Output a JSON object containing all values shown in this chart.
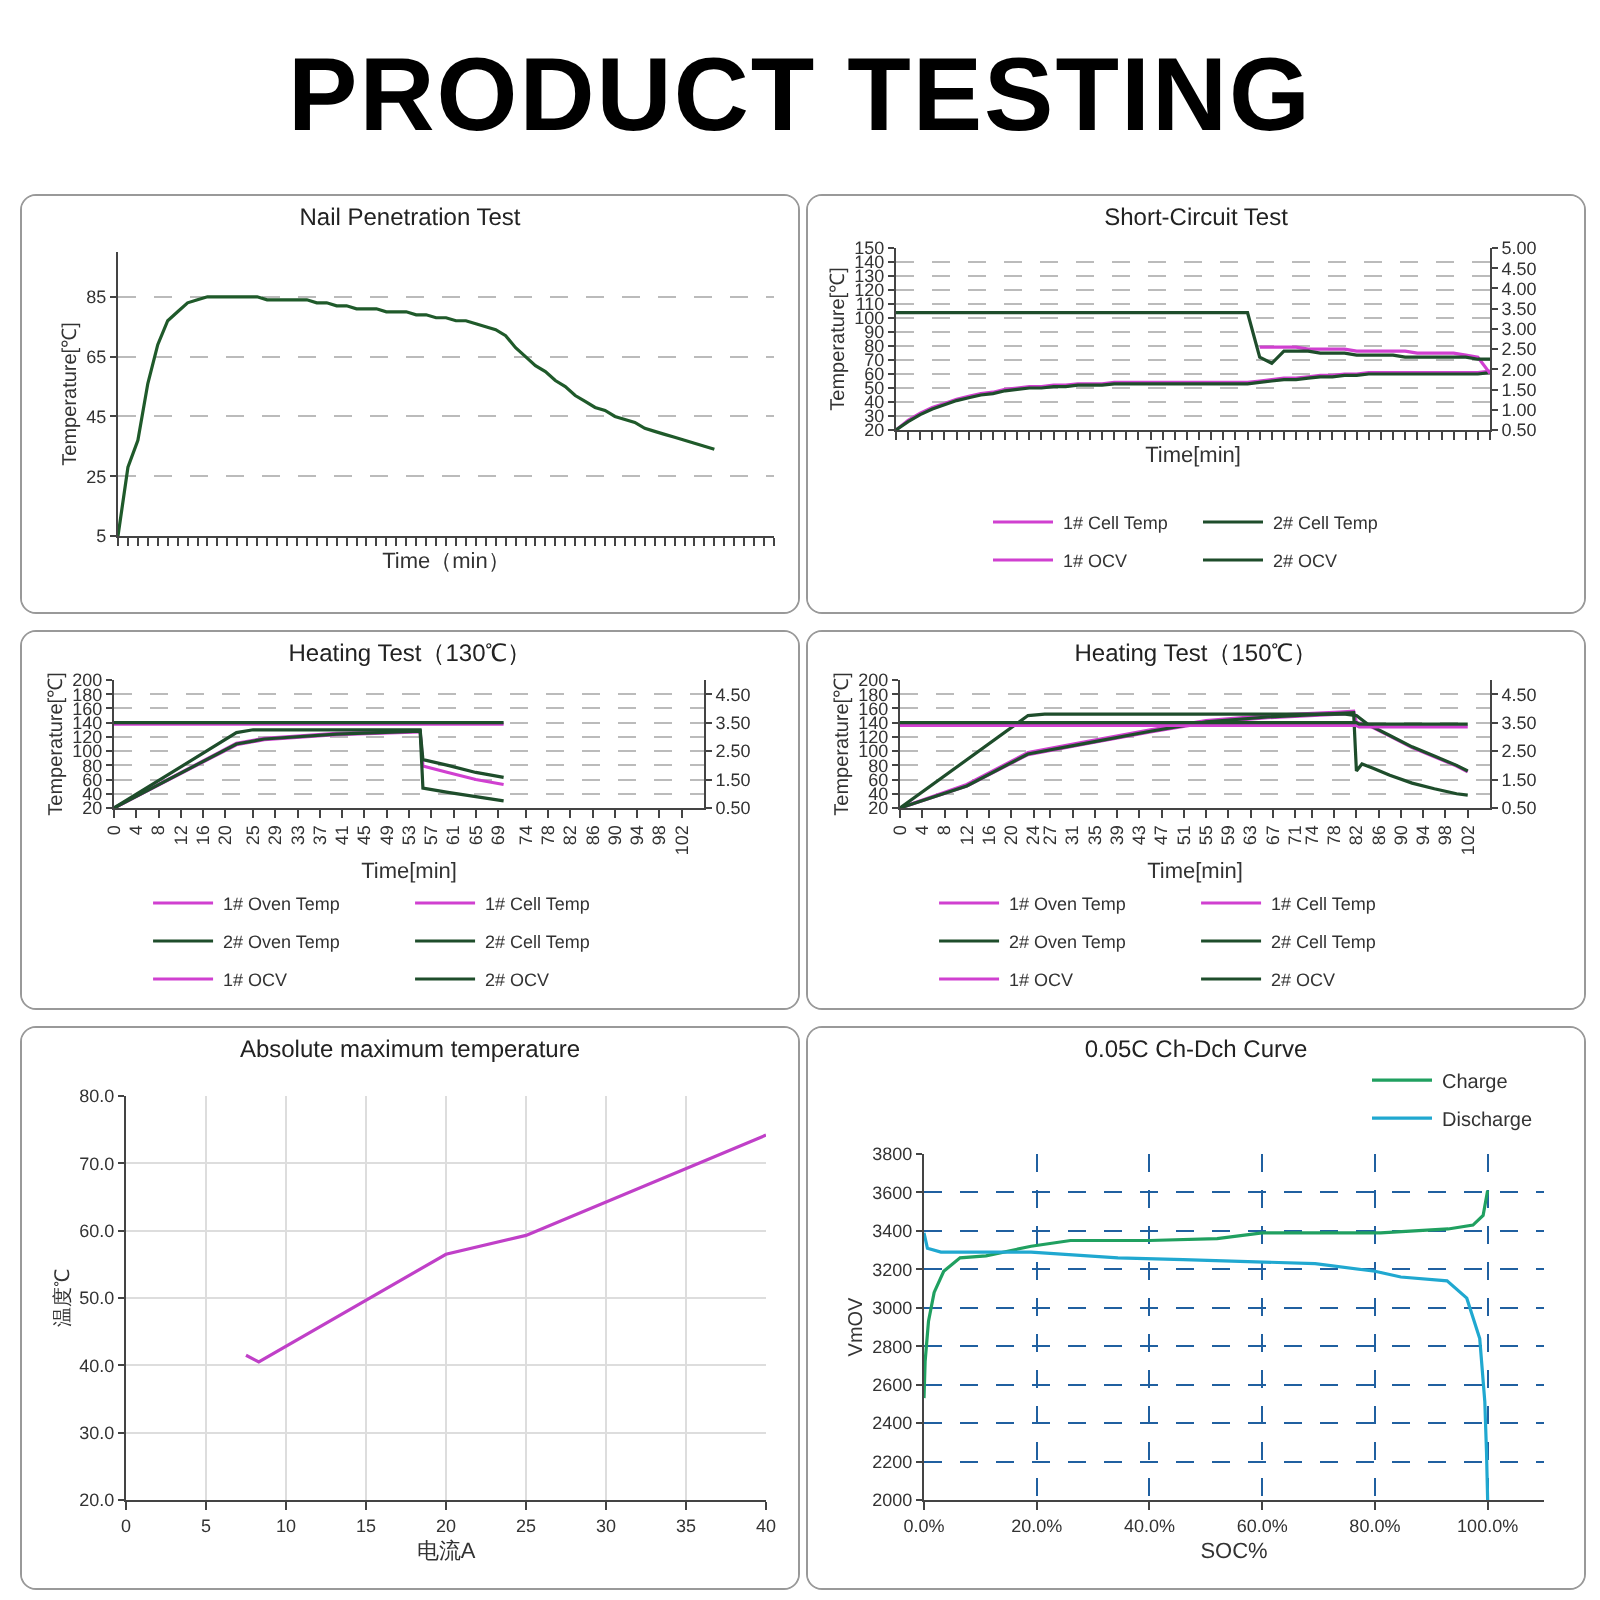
{
  "chart_data": [
    {
      "type": "other",
      "title": "PRODUCT TESTING"
    },
    {
      "type": "line",
      "title": "Nail Penetration Test",
      "xlabel": "Time（min）",
      "ylabel": "Temperature[℃]",
      "categories": [
        null,
        null,
        null,
        null,
        null,
        null,
        null,
        null,
        null,
        null,
        null,
        null,
        null,
        null,
        null,
        null,
        null,
        null,
        null,
        null,
        null,
        null,
        null,
        null,
        null,
        null,
        null,
        null,
        null,
        null,
        null,
        null,
        null,
        null,
        null,
        null,
        null,
        null,
        null,
        null,
        null,
        null,
        null,
        null,
        null,
        null,
        null,
        null,
        null,
        null,
        null,
        null,
        null,
        null,
        null,
        null,
        null,
        null,
        null,
        null,
        null,
        null,
        null,
        null,
        null,
        null,
        null
      ],
      "ylim": [
        5,
        100
      ],
      "yticks": [
        5,
        25,
        45,
        65,
        85
      ],
      "grid": "y",
      "tick_labels": "y",
      "line_style": "solid",
      "series": [
        {
          "color": "#1f5a2a",
          "values": [
            5,
            28,
            37,
            56,
            69,
            77,
            80,
            83,
            84,
            85,
            85,
            85,
            85,
            85,
            85,
            84,
            84,
            84,
            84,
            84,
            83,
            83,
            82,
            82,
            81,
            81,
            81,
            80,
            80,
            80,
            79,
            79,
            78,
            78,
            77,
            77,
            76,
            75,
            74,
            72,
            68,
            65,
            62,
            60,
            57,
            55,
            52,
            50,
            48,
            47,
            45,
            44,
            43,
            41,
            40,
            39,
            38,
            37,
            36,
            35,
            34,
            null,
            null,
            null,
            null,
            null,
            null
          ]
        }
      ]
    },
    {
      "type": "line",
      "title": "Short-Circuit Test",
      "xlabel": "Time[min]",
      "ylabel": "Temperature[℃]",
      "categories": [
        null,
        null,
        null,
        null,
        null,
        null,
        null,
        null,
        null,
        null,
        null,
        null,
        null,
        null,
        null,
        null,
        null,
        null,
        null,
        null,
        null,
        null,
        null,
        null,
        null,
        null,
        null,
        null,
        null,
        null,
        null,
        null,
        null,
        null,
        null,
        null,
        null,
        null,
        null,
        null,
        null,
        null,
        null,
        null,
        null,
        null,
        null,
        null,
        null,
        null
      ],
      "ylim": [
        20,
        150
      ],
      "yticks": [
        20,
        30,
        40,
        50,
        60,
        70,
        80,
        90,
        100,
        110,
        120,
        130,
        140,
        150
      ],
      "y2lim": [
        0.5,
        5
      ],
      "y2ticks": [
        {
          "value": 0.5,
          "label": "0.50"
        },
        {
          "value": 1,
          "label": "1.00"
        },
        {
          "value": 1.5,
          "label": "1.50"
        },
        {
          "value": 2,
          "label": "2.00"
        },
        {
          "value": 2.5,
          "label": "2.50"
        },
        {
          "value": 3,
          "label": "3.00"
        },
        {
          "value": 3.5,
          "label": "3.50"
        },
        {
          "value": 4,
          "label": "4.00"
        },
        {
          "value": 4.5,
          "label": "4.50"
        },
        {
          "value": 5,
          "label": "5.00"
        }
      ],
      "grid": "y",
      "tick_labels": "y",
      "legend": "bottom",
      "line_style": "solid",
      "series": [
        {
          "name": "1# Cell Temp",
          "color": "#d040d0",
          "values": [
            20,
            27,
            32,
            36,
            39,
            42,
            44,
            46,
            47,
            49,
            50,
            51,
            51,
            52,
            52,
            53,
            53,
            53,
            54,
            54,
            54,
            54,
            54,
            54,
            54,
            54,
            54,
            54,
            54,
            54,
            55,
            56,
            57,
            57,
            58,
            59,
            59,
            60,
            60,
            61,
            61,
            61,
            61,
            61,
            61,
            61,
            61,
            61,
            61,
            62
          ]
        },
        {
          "name": "2# Cell Temp",
          "color": "#1e4d2b",
          "values": [
            20,
            26,
            31,
            35,
            38,
            41,
            43,
            45,
            46,
            48,
            49,
            50,
            50,
            51,
            51,
            52,
            52,
            52,
            53,
            53,
            53,
            53,
            53,
            53,
            53,
            53,
            53,
            53,
            53,
            53,
            54,
            55,
            56,
            56,
            57,
            58,
            58,
            59,
            59,
            60,
            60,
            60,
            60,
            60,
            60,
            60,
            60,
            60,
            60,
            61
          ]
        },
        {
          "name": "1# OCV",
          "color": "#d040d0",
          "axis": "y2",
          "values": [
            null,
            null,
            null,
            null,
            null,
            null,
            null,
            null,
            null,
            null,
            null,
            null,
            null,
            null,
            null,
            null,
            null,
            null,
            null,
            null,
            null,
            null,
            null,
            null,
            null,
            null,
            null,
            null,
            null,
            null,
            2.55,
            2.55,
            2.55,
            2.55,
            2.5,
            2.5,
            2.5,
            2.5,
            2.45,
            2.45,
            2.45,
            2.45,
            2.45,
            2.4,
            2.4,
            2.4,
            2.4,
            2.35,
            2.3,
            1.9
          ]
        },
        {
          "name": "2# OCV",
          "color": "#1e4d2b",
          "axis": "y2",
          "values": [
            3.4,
            3.4,
            3.4,
            3.4,
            3.4,
            3.4,
            3.4,
            3.4,
            3.4,
            3.4,
            3.4,
            3.4,
            3.4,
            3.4,
            3.4,
            3.4,
            3.4,
            3.4,
            3.4,
            3.4,
            3.4,
            3.4,
            3.4,
            3.4,
            3.4,
            3.4,
            3.4,
            3.4,
            3.4,
            3.4,
            2.3,
            2.15,
            2.45,
            2.45,
            2.45,
            2.4,
            2.4,
            2.4,
            2.35,
            2.35,
            2.35,
            2.35,
            2.3,
            2.3,
            2.3,
            2.3,
            2.3,
            2.3,
            2.25,
            2.25
          ]
        }
      ]
    },
    {
      "type": "line",
      "title": "Heating Test（130℃）",
      "xlabel": "Time[min]",
      "ylabel": "Temperature[℃]",
      "xlim": [
        0,
        106
      ],
      "xticks": [
        0,
        4,
        8,
        12,
        16,
        20,
        25,
        29,
        33,
        37,
        41,
        45,
        49,
        53,
        57,
        61,
        65,
        69,
        74,
        78,
        82,
        86,
        90,
        94,
        98,
        102
      ],
      "ylim": [
        20,
        200
      ],
      "yticks": [
        20,
        40,
        60,
        80,
        100,
        120,
        140,
        160,
        180,
        200
      ],
      "y2lim": [
        0.5,
        5
      ],
      "y2ticks": [
        {
          "value": 0.5,
          "label": "0.50"
        },
        {
          "value": 1.5,
          "label": "1.50"
        },
        {
          "value": 2.5,
          "label": "2.50"
        },
        {
          "value": 3.5,
          "label": "3.50"
        },
        {
          "value": 4.5,
          "label": "4.50"
        }
      ],
      "grid": "y",
      "legend": "bottom",
      "line_style": "solid",
      "series": [
        {
          "name": "1# Oven Temp",
          "color": "#d040d0",
          "x": [
            0,
            22,
            27,
            40,
            55,
            55.5,
            60,
            65,
            70
          ],
          "values": [
            20,
            111,
            118,
            125,
            128,
            79,
            70,
            60,
            53
          ]
        },
        {
          "name": "1# Cell Temp",
          "color": "#d040d0",
          "x": [
            0,
            22,
            27,
            40,
            55
          ],
          "values": [
            20,
            109,
            116,
            123,
            127
          ]
        },
        {
          "name": "2# Oven Temp",
          "color": "#1e4d2b",
          "x": [
            0,
            22,
            25,
            55,
            55.5,
            60,
            65,
            70
          ],
          "values": [
            20,
            126,
            130,
            130,
            88,
            80,
            70,
            63
          ]
        },
        {
          "name": "2# Cell Temp",
          "color": "#1e4d2b",
          "x": [
            0,
            22,
            27,
            40,
            55,
            55.5,
            60,
            65,
            70
          ],
          "values": [
            20,
            110,
            117,
            124,
            128,
            48,
            42,
            36,
            30
          ]
        },
        {
          "name": "1# OCV",
          "color": "#d040d0",
          "axis": "y2",
          "x": [
            0,
            70
          ],
          "values": [
            3.45,
            3.45
          ]
        },
        {
          "name": "2# OCV",
          "color": "#1e4d2b",
          "axis": "y2",
          "x": [
            0,
            70
          ],
          "values": [
            3.5,
            3.5
          ]
        }
      ]
    },
    {
      "type": "line",
      "title": "Heating Test（150℃）",
      "xlabel": "Time[min]",
      "ylabel": "Temperature[℃]",
      "xlim": [
        0,
        106
      ],
      "xticks": [
        0,
        4,
        8,
        12,
        16,
        20,
        24,
        27,
        31,
        35,
        39,
        43,
        47,
        51,
        55,
        59,
        63,
        67,
        71,
        74,
        78,
        82,
        86,
        90,
        94,
        98,
        102
      ],
      "ylim": [
        20,
        200
      ],
      "yticks": [
        20,
        40,
        60,
        80,
        100,
        120,
        140,
        160,
        180,
        200
      ],
      "y2lim": [
        0.5,
        5
      ],
      "y2ticks": [
        {
          "value": 0.5,
          "label": "0.50"
        },
        {
          "value": 1.5,
          "label": "1.50"
        },
        {
          "value": 2.5,
          "label": "2.50"
        },
        {
          "value": 3.5,
          "label": "3.50"
        },
        {
          "value": 4.5,
          "label": "4.50"
        }
      ],
      "grid": "y",
      "legend": "bottom",
      "line_style": "solid",
      "series": [
        {
          "name": "1# Oven Temp",
          "color": "#d040d0",
          "x": [
            0,
            12,
            23,
            34,
            45,
            55,
            66,
            79,
            81.5,
            82,
            84,
            88,
            92,
            96,
            100,
            102
          ],
          "values": [
            20,
            53,
            98,
            114,
            130,
            143,
            150,
            155,
            156,
            140,
            137,
            121,
            105,
            92,
            79,
            71
          ]
        },
        {
          "name": "1# Cell Temp",
          "color": "#d040d0",
          "x": [
            0,
            12,
            23,
            34,
            45,
            55,
            66,
            79,
            81.5
          ],
          "values": [
            20,
            51,
            95,
            111,
            127,
            140,
            147,
            152,
            153
          ]
        },
        {
          "name": "2# Oven Temp",
          "color": "#1e4d2b",
          "x": [
            0,
            23,
            26,
            80,
            82,
            84,
            88,
            92,
            96,
            100,
            102
          ],
          "values": [
            20,
            150,
            152,
            152,
            150,
            138,
            122,
            106,
            93,
            80,
            72
          ]
        },
        {
          "name": "2# Cell Temp",
          "color": "#1e4d2b",
          "x": [
            0,
            12,
            23,
            34,
            45,
            55,
            66,
            79,
            81.5,
            82,
            83,
            85,
            88,
            92,
            96,
            100,
            102
          ],
          "values": [
            20,
            51,
            96,
            112,
            128,
            141,
            148,
            153,
            154,
            72,
            82,
            76,
            66,
            55,
            47,
            40,
            38
          ]
        },
        {
          "name": "1# OCV",
          "color": "#d040d0",
          "axis": "y2",
          "x": [
            0,
            82,
            82.5,
            102
          ],
          "values": [
            3.4,
            3.4,
            3.35,
            3.35
          ]
        },
        {
          "name": "2# OCV",
          "color": "#1e4d2b",
          "axis": "y2",
          "x": [
            0,
            82,
            82.5,
            102
          ],
          "values": [
            3.5,
            3.5,
            3.45,
            3.45
          ]
        }
      ]
    },
    {
      "type": "line",
      "title": "Absolute maximum temperature",
      "xlabel": "电流A",
      "ylabel": "温度℃",
      "xlim": [
        0,
        40
      ],
      "xticks": [
        0,
        5,
        10,
        15,
        20,
        25,
        30,
        35,
        40
      ],
      "ylim": [
        20,
        80
      ],
      "yticks": [
        {
          "value": 20,
          "label": "20.0"
        },
        {
          "value": 30,
          "label": "30.0"
        },
        {
          "value": 40,
          "label": "40.0"
        },
        {
          "value": 50,
          "label": "50.0"
        },
        {
          "value": 60,
          "label": "60.0"
        },
        {
          "value": 70,
          "label": "70.0"
        },
        {
          "value": 80,
          "label": "80.0"
        }
      ],
      "grid": true,
      "line_style": "solid",
      "series": [
        {
          "color": "#c040c8",
          "x": [
            7.5,
            8.3,
            20,
            25,
            40
          ],
          "values": [
            41.5,
            40.5,
            56.5,
            59.3,
            74.2
          ]
        }
      ]
    },
    {
      "type": "line",
      "title": "0.05C Ch-Dch Curve",
      "xlabel": "SOC%",
      "ylabel": "VmOV",
      "xlim": [
        0,
        110
      ],
      "xticks": [
        {
          "value": 0,
          "label": "0.0%"
        },
        {
          "value": 20,
          "label": "20.0%"
        },
        {
          "value": 40,
          "label": "40.0%"
        },
        {
          "value": 60,
          "label": "60.0%"
        },
        {
          "value": 80,
          "label": "80.0%"
        },
        {
          "value": 100,
          "label": "100.0%"
        }
      ],
      "ylim": [
        2000,
        3800
      ],
      "yticks": [
        2000,
        2200,
        2400,
        2600,
        2800,
        3000,
        3200,
        3400,
        3600,
        3800
      ],
      "grid": true,
      "legend": "top right",
      "line_style": "solid",
      "series": [
        {
          "name": "Charge",
          "color": "#20a060",
          "x": [
            0,
            0.2,
            0.8,
            1.8,
            3.5,
            6.4,
            11,
            19,
            26,
            40,
            52,
            60,
            81,
            93,
            97.4,
            99.2,
            100
          ],
          "values": [
            2530,
            2720,
            2930,
            3080,
            3190,
            3260,
            3270,
            3320,
            3350,
            3350,
            3360,
            3390,
            3390,
            3410,
            3430,
            3480,
            3610
          ]
        },
        {
          "name": "Discharge",
          "color": "#20a8d0",
          "x": [
            0,
            0.6,
            3,
            19,
            34.4,
            46,
            69.4,
            80,
            84.6,
            92.8,
            96.3,
            98.6,
            99.5,
            99.8,
            100
          ],
          "values": [
            3390,
            3310,
            3290,
            3290,
            3260,
            3250,
            3230,
            3190,
            3160,
            3140,
            3050,
            2840,
            2510,
            2250,
            2000
          ]
        }
      ]
    }
  ]
}
